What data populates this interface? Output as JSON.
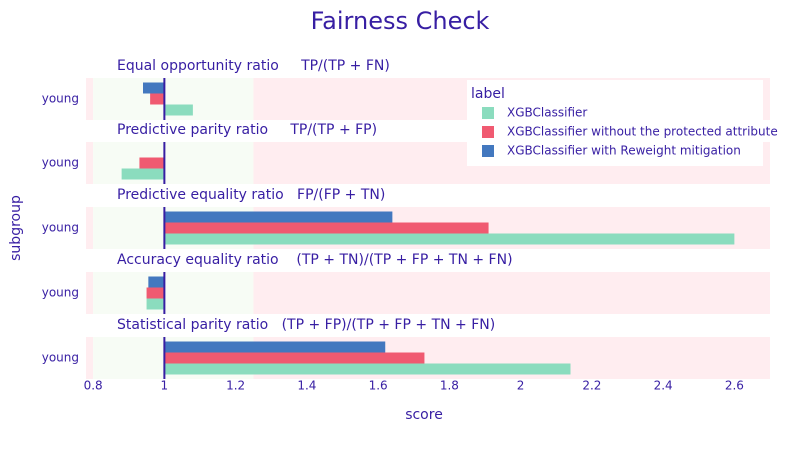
{
  "chart_data": {
    "type": "bar",
    "orientation": "horizontal",
    "title": "Fairness Check",
    "xlabel": "score",
    "ylabel": "subgroup",
    "xlim": [
      0.78,
      2.7
    ],
    "xticks": [
      0.8,
      1,
      1.2,
      1.4,
      1.6,
      1.8,
      2,
      2.2,
      2.4,
      2.6
    ],
    "xtick_labels": [
      "0.8",
      "1",
      "1.2",
      "1.4",
      "1.6",
      "1.8",
      "2",
      "2.2",
      "2.4",
      "2.6"
    ],
    "baseline": 1,
    "acceptable_range": [
      0.8,
      1.25
    ],
    "colors": {
      "title": "#371ea3",
      "acceptable_band": "#f7fcf5",
      "unacceptable_band": "#ffedf0",
      "baseline": "#371ea3"
    },
    "legend": {
      "title": "label",
      "placement": "top-right",
      "entries": [
        "XGBClassifier",
        "XGBClassifier without the protected attribute",
        "XGBClassifier with Reweight mitigation"
      ]
    },
    "series": [
      {
        "name": "XGBClassifier",
        "color": "#8bdcbe"
      },
      {
        "name": "XGBClassifier without the protected attribute",
        "color": "#f05a71"
      },
      {
        "name": "XGBClassifier with Reweight mitigation",
        "color": "#4378bf"
      }
    ],
    "panels": [
      {
        "title": "Equal opportunity ratio     TP/(TP + FN)",
        "category": "young",
        "values": [
          1.08,
          0.96,
          0.94
        ]
      },
      {
        "title": "Predictive parity ratio     TP/(TP + FP)",
        "category": "young",
        "values": [
          0.88,
          0.93,
          1.0
        ]
      },
      {
        "title": "Predictive equality ratio   FP/(FP + TN)",
        "category": "young",
        "values": [
          2.6,
          1.91,
          1.64
        ]
      },
      {
        "title": "Accuracy equality ratio    (TP + TN)/(TP + FP + TN + FN)",
        "category": "young",
        "values": [
          0.95,
          0.95,
          0.955
        ]
      },
      {
        "title": "Statistical parity ratio   (TP + FP)/(TP + FP + TN + FN)",
        "category": "young",
        "values": [
          2.14,
          1.73,
          1.62
        ]
      }
    ]
  }
}
